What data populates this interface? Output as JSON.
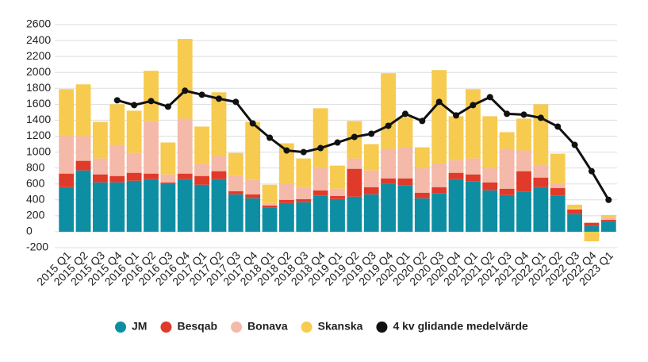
{
  "chart_data": {
    "type": "bar",
    "categories": [
      "2015 Q1",
      "2015 Q2",
      "2015 Q3",
      "2015 Q4",
      "2016 Q1",
      "2016 Q2",
      "2016 Q3",
      "2016 Q4",
      "2017 Q1",
      "2017 Q2",
      "2017 Q3",
      "2017 Q4",
      "2018 Q1",
      "2018 Q2",
      "2018 Q3",
      "2018 Q4",
      "2019 Q1",
      "2019 Q2",
      "2019 Q3",
      "2019 Q4",
      "2020 Q1",
      "2020 Q2",
      "2020 Q3",
      "2020 Q4",
      "2021 Q1",
      "2021 Q2",
      "2021 Q3",
      "2021 Q4",
      "2022 Q1",
      "2022 Q2",
      "2022 Q3",
      "2022 Q4",
      "2023 Q1"
    ],
    "stacked": true,
    "series": [
      {
        "name": "JM",
        "color": "#0e8ea3",
        "values": [
          560,
          770,
          620,
          620,
          640,
          660,
          600,
          660,
          590,
          660,
          470,
          420,
          300,
          360,
          370,
          450,
          410,
          440,
          470,
          600,
          580,
          420,
          480,
          660,
          630,
          520,
          460,
          500,
          560,
          450,
          220,
          70,
          130
        ]
      },
      {
        "name": "Besqab",
        "color": "#e03a2a",
        "values": [
          170,
          120,
          100,
          80,
          100,
          70,
          20,
          70,
          110,
          100,
          40,
          50,
          30,
          40,
          40,
          70,
          40,
          350,
          90,
          70,
          90,
          70,
          80,
          80,
          90,
          100,
          80,
          260,
          120,
          100,
          60,
          40,
          20
        ]
      },
      {
        "name": "Bonava",
        "color": "#f4b9a8",
        "values": [
          470,
          310,
          200,
          390,
          250,
          660,
          100,
          690,
          150,
          190,
          190,
          180,
          30,
          200,
          150,
          280,
          90,
          130,
          210,
          370,
          390,
          310,
          300,
          160,
          200,
          180,
          500,
          260,
          160,
          50,
          10,
          10,
          30
        ]
      },
      {
        "name": "Skanska",
        "color": "#f6cb4f",
        "values": [
          590,
          650,
          460,
          510,
          530,
          630,
          400,
          1000,
          470,
          800,
          290,
          730,
          230,
          510,
          360,
          750,
          290,
          470,
          330,
          950,
          380,
          260,
          1170,
          550,
          870,
          650,
          210,
          400,
          760,
          380,
          50,
          -120,
          30
        ]
      },
      {
        "name": "4 kv glidande medelvärde",
        "color": "#111111",
        "type": "line",
        "values": [
          null,
          null,
          null,
          1650,
          1590,
          1640,
          1570,
          1770,
          1720,
          1670,
          1630,
          1360,
          1180,
          1020,
          1000,
          1050,
          1120,
          1190,
          1230,
          1330,
          1480,
          1390,
          1630,
          1460,
          1590,
          1690,
          1480,
          1470,
          1430,
          1320,
          1090,
          760,
          400
        ]
      }
    ],
    "ylim": [
      -200,
      2600
    ],
    "yticks": [
      -200,
      0,
      200,
      400,
      600,
      800,
      1000,
      1200,
      1400,
      1600,
      1800,
      2000,
      2200,
      2400,
      2600
    ],
    "grid": true,
    "legend": "bottom"
  }
}
